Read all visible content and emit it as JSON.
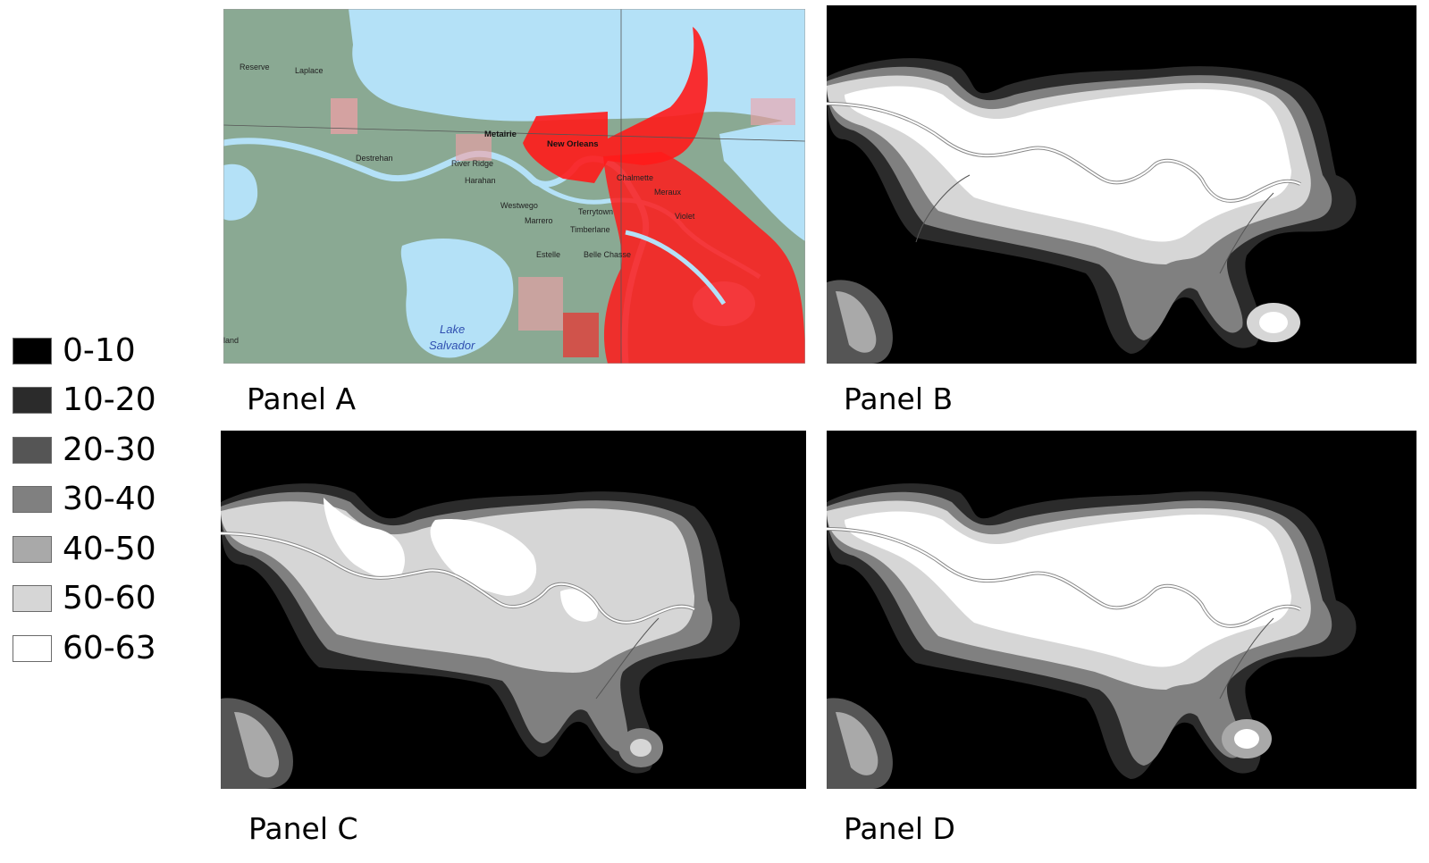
{
  "legend": {
    "items": [
      {
        "label": "0-10",
        "color": "#000000"
      },
      {
        "label": "10-20",
        "color": "#2b2b2b"
      },
      {
        "label": "20-30",
        "color": "#555555"
      },
      {
        "label": "30-40",
        "color": "#808080"
      },
      {
        "label": "40-50",
        "color": "#a9a9a9"
      },
      {
        "label": "50-60",
        "color": "#d6d6d6"
      },
      {
        "label": "60-63",
        "color": "#ffffff"
      }
    ]
  },
  "panels": {
    "a": {
      "label": "Panel A"
    },
    "b": {
      "label": "Panel B"
    },
    "c": {
      "label": "Panel C"
    },
    "d": {
      "label": "Panel D"
    }
  },
  "map_labels": {
    "reserve": "Reserve",
    "laplace": "Laplace",
    "metairie": "Metairie",
    "new_orleans": "New Orleans",
    "destrehan": "Destrehan",
    "river_ridge": "River Ridge",
    "harahan": "Harahan",
    "chalmette": "Chalmette",
    "meraux": "Meraux",
    "westwego": "Westwego",
    "marrero": "Marrero",
    "terrytown": "Terrytown",
    "timberlane": "Timberlane",
    "violet": "Violet",
    "estelle": "Estelle",
    "belle_chasse": "Belle Chasse",
    "lake": "Lake",
    "salvador": "Salvador",
    "land": "land"
  },
  "colors": {
    "water": "#b4e1f7",
    "land": "#8aa993",
    "flood": "#ff1a1a",
    "flood_light": "#f4a0a6"
  }
}
